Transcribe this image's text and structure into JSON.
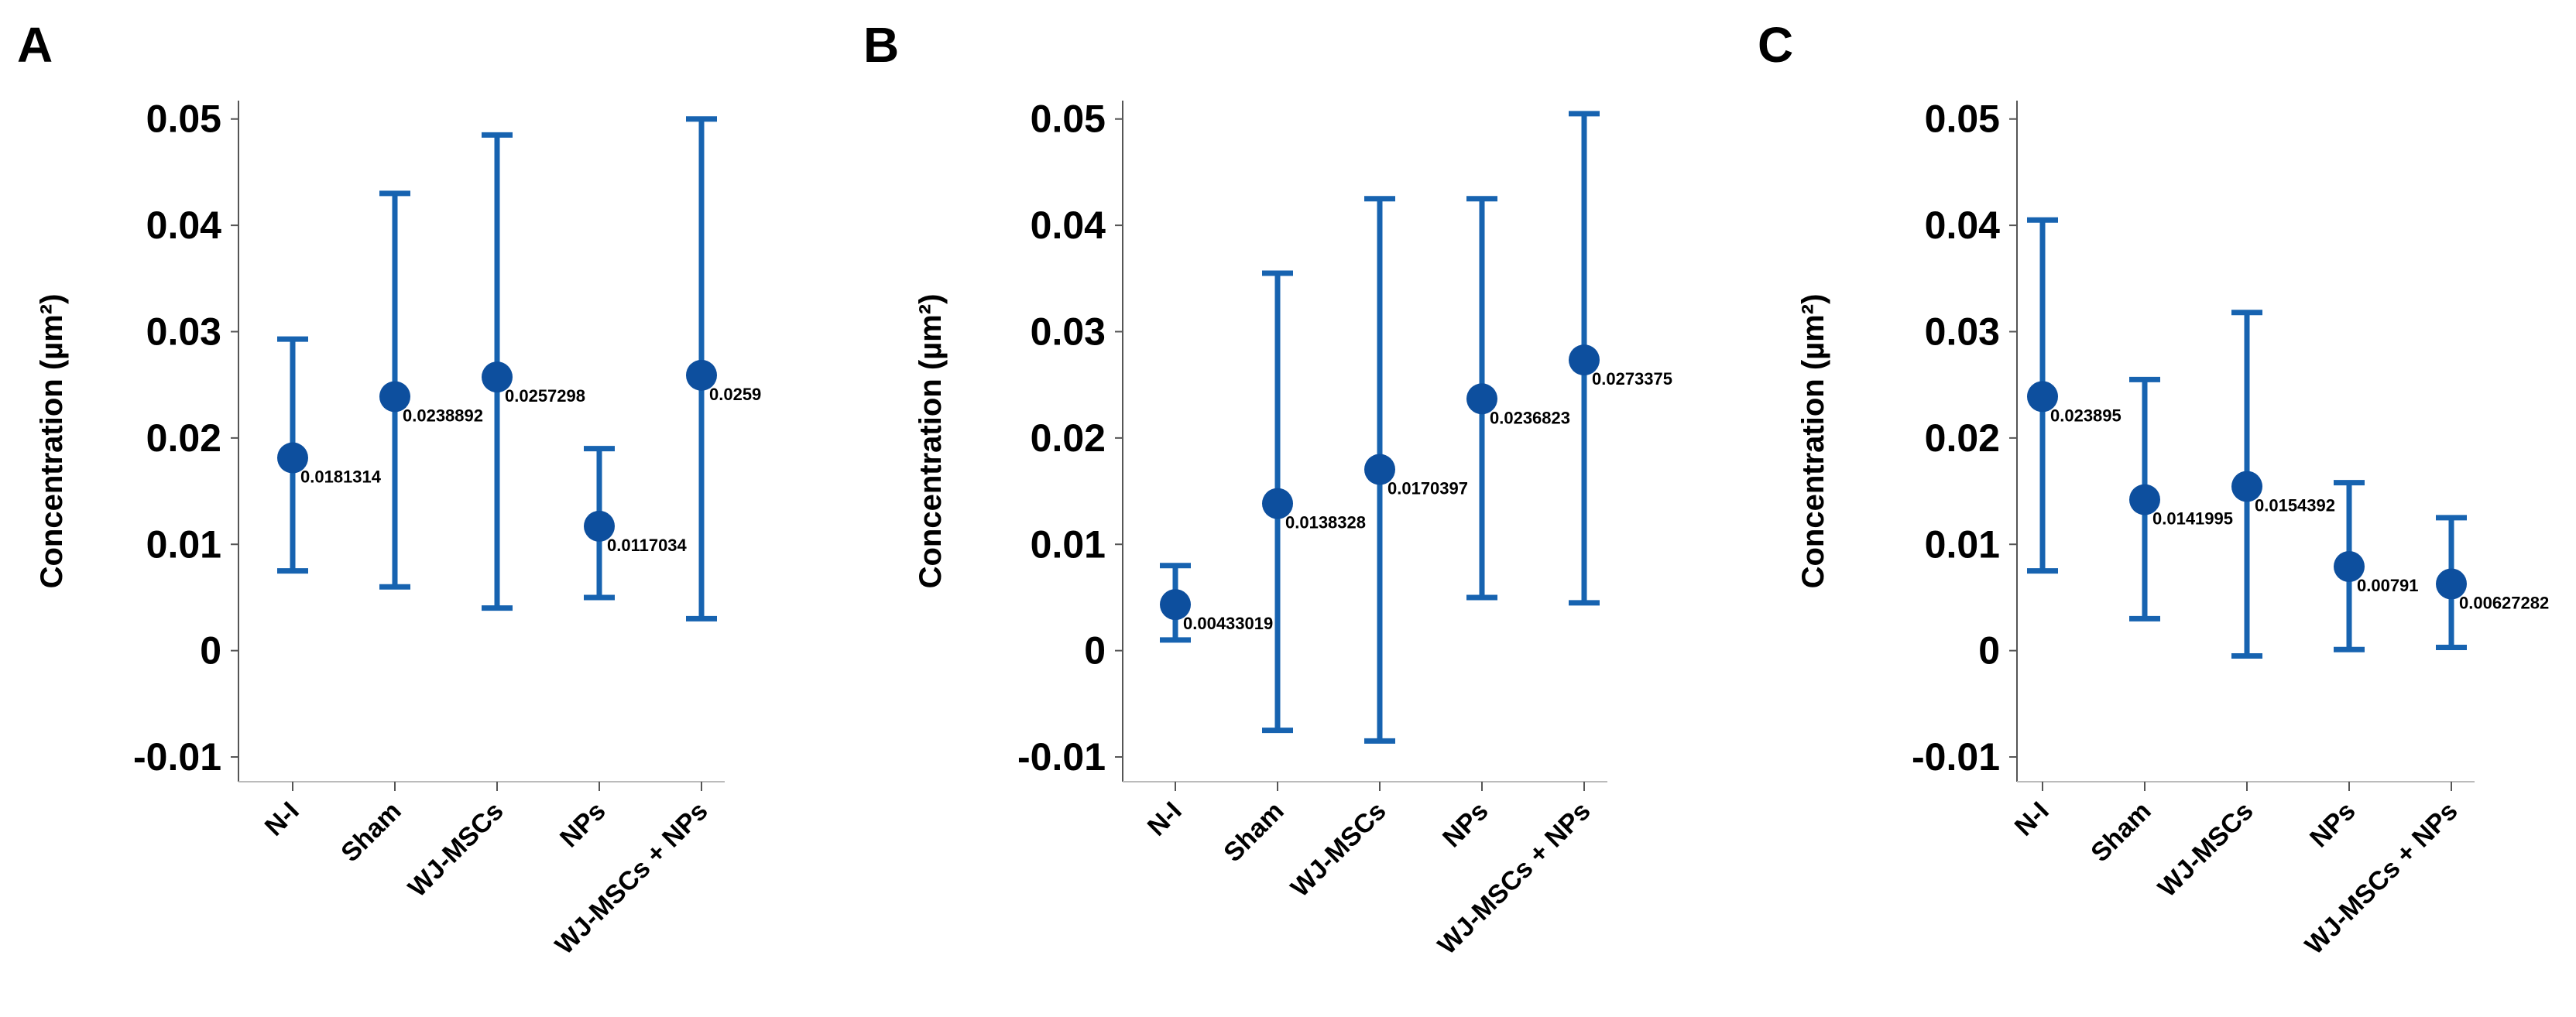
{
  "chart_data": [
    {
      "type": "errorbar",
      "title": "A",
      "y_label": "Concentration (µm²)",
      "categories": [
        "N-I",
        "Sham",
        "WJ-MSCs",
        "NPs",
        "WJ-MSCs + NPs"
      ],
      "values": [
        0.0181314,
        0.0238892,
        0.0257298,
        0.0117034,
        0.0259
      ],
      "error_low": [
        0.0075,
        0.006,
        0.004,
        0.005,
        0.003
      ],
      "error_high": [
        0.0293,
        0.043,
        0.0485,
        0.019,
        0.05
      ],
      "color": "#1763b0",
      "ylim": [
        -0.0116,
        0.051
      ],
      "yticks": [
        -0.01,
        0,
        0.01,
        0.02,
        0.03,
        0.04,
        0.05
      ]
    },
    {
      "type": "errorbar",
      "title": "B",
      "y_label": "Concentration (µm²)",
      "categories": [
        "N-I",
        "Sham",
        "WJ-MSCs",
        "NPs",
        "WJ-MSCs + NPs"
      ],
      "values": [
        0.00433019,
        0.0138328,
        0.0170397,
        0.0236823,
        0.0273375
      ],
      "error_low": [
        0.001,
        -0.0075,
        -0.0085,
        0.005,
        0.0045
      ],
      "error_high": [
        0.008,
        0.0355,
        0.0425,
        0.0425,
        0.0505
      ],
      "color": "#1763b0",
      "ylim": [
        -0.0116,
        0.051
      ],
      "yticks": [
        -0.01,
        0,
        0.01,
        0.02,
        0.03,
        0.04,
        0.05
      ]
    },
    {
      "type": "errorbar",
      "title": "C",
      "y_label": "Concentration (µm²)",
      "categories": [
        "N-I",
        "Sham",
        "WJ-MSCs",
        "NPs",
        "WJ-MSCs + NPs"
      ],
      "values": [
        0.023895,
        0.0141995,
        0.0154392,
        0.00791,
        0.00627282
      ],
      "error_low": [
        0.0075,
        0.003,
        -0.0005,
        0.0001,
        0.0003
      ],
      "error_high": [
        0.0405,
        0.0255,
        0.0318,
        0.0158,
        0.0125
      ],
      "color": "#1763b0",
      "ylim": [
        -0.0116,
        0.051
      ],
      "yticks": [
        -0.01,
        0,
        0.01,
        0.02,
        0.03,
        0.04,
        0.05
      ]
    }
  ]
}
